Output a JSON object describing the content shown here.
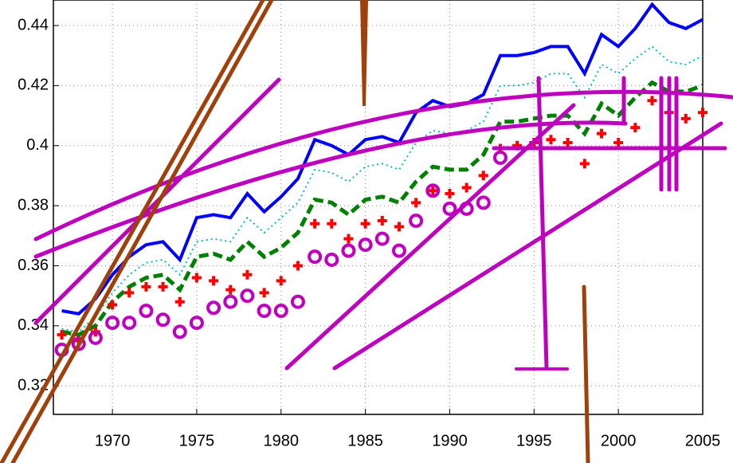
{
  "chart_data": {
    "type": "line",
    "x": [
      1967,
      1968,
      1969,
      1970,
      1971,
      1972,
      1973,
      1974,
      1975,
      1976,
      1977,
      1978,
      1979,
      1980,
      1981,
      1982,
      1983,
      1984,
      1985,
      1986,
      1987,
      1988,
      1989,
      1990,
      1991,
      1992,
      1993,
      1994,
      1995,
      1996,
      1997,
      1998,
      1999,
      2000,
      2001,
      2002,
      2003,
      2004,
      2005
    ],
    "xlim": [
      1966.5,
      2005
    ],
    "xticks": [
      1970,
      1975,
      1980,
      1985,
      1990,
      1995,
      2000,
      2005
    ],
    "ylim": [
      0.3105,
      0.4485
    ],
    "yticks": [
      0.32,
      0.34,
      0.36,
      0.38,
      0.4,
      0.42,
      0.44
    ],
    "grid": true,
    "series": [
      {
        "color": "#0000ff",
        "style": "solid",
        "values": [
          0.345,
          0.344,
          0.349,
          0.357,
          0.363,
          0.367,
          0.368,
          0.362,
          0.376,
          0.377,
          0.376,
          0.384,
          0.378,
          0.383,
          0.389,
          0.402,
          0.4,
          0.397,
          0.402,
          0.403,
          0.401,
          0.411,
          0.415,
          0.413,
          0.414,
          0.417,
          0.43,
          0.43,
          0.431,
          0.433,
          0.433,
          0.424,
          0.437,
          0.433,
          0.439,
          0.447,
          0.441,
          0.439,
          0.442
        ]
      },
      {
        "color": "#00bfbf",
        "style": "dotted",
        "values": [
          0.339,
          0.338,
          0.343,
          0.351,
          0.357,
          0.361,
          0.362,
          0.357,
          0.368,
          0.369,
          0.368,
          0.376,
          0.371,
          0.376,
          0.381,
          0.392,
          0.391,
          0.388,
          0.393,
          0.394,
          0.392,
          0.401,
          0.405,
          0.404,
          0.405,
          0.408,
          0.42,
          0.42,
          0.421,
          0.424,
          0.424,
          0.416,
          0.427,
          0.424,
          0.429,
          0.433,
          0.428,
          0.427,
          0.43
        ]
      },
      {
        "color": "#008000",
        "style": "dashed",
        "values": [
          0.338,
          0.337,
          0.34,
          0.348,
          0.353,
          0.356,
          0.357,
          0.352,
          0.363,
          0.364,
          0.362,
          0.368,
          0.363,
          0.366,
          0.371,
          0.382,
          0.381,
          0.377,
          0.382,
          0.383,
          0.381,
          0.388,
          0.393,
          0.392,
          0.392,
          0.397,
          0.408,
          0.408,
          0.409,
          0.41,
          0.41,
          0.404,
          0.414,
          0.41,
          0.416,
          0.421,
          0.418,
          0.418,
          0.42
        ]
      },
      {
        "color": "#ff0000",
        "style": "plus",
        "values": [
          0.337,
          0.335,
          0.338,
          0.347,
          0.351,
          0.353,
          0.353,
          0.348,
          0.356,
          0.355,
          0.352,
          0.357,
          0.351,
          0.355,
          0.36,
          0.374,
          0.374,
          0.369,
          0.374,
          0.375,
          0.373,
          0.381,
          0.385,
          0.384,
          0.386,
          0.39,
          0.399,
          0.4,
          0.401,
          0.402,
          0.401,
          0.394,
          0.404,
          0.401,
          0.406,
          0.415,
          0.411,
          0.409,
          0.411
        ]
      },
      {
        "color": "#bf00bf",
        "style": "circle",
        "values": [
          0.332,
          0.334,
          0.336,
          0.341,
          0.341,
          0.345,
          0.342,
          0.338,
          0.341,
          0.346,
          0.348,
          0.35,
          0.345,
          0.345,
          0.348,
          0.363,
          0.362,
          0.365,
          0.367,
          0.369,
          0.365,
          0.375,
          0.385,
          0.379,
          0.379,
          0.381,
          0.396,
          null,
          null,
          null,
          null,
          null,
          null,
          null,
          null,
          null,
          null,
          null,
          null
        ]
      }
    ]
  }
}
